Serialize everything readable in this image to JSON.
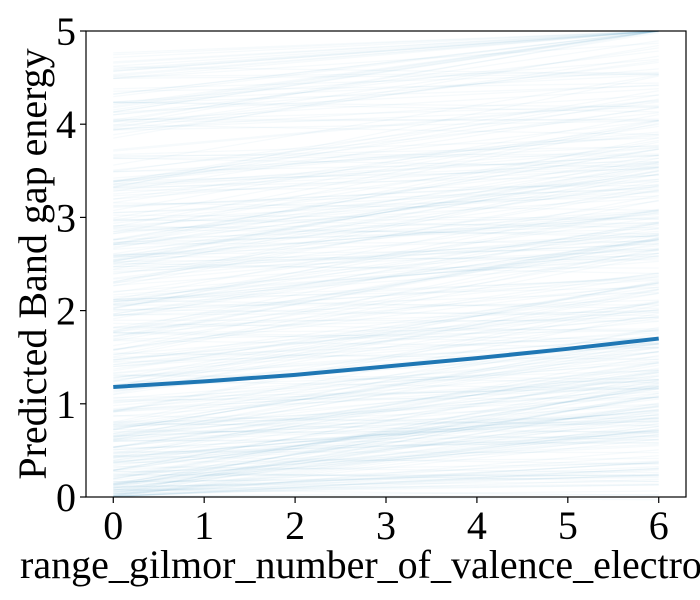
{
  "chart_data": {
    "type": "line",
    "title": "",
    "xlabel": "range_gilmor_number_of_valence_electron",
    "ylabel": "Predicted Band gap energy",
    "xlim": [
      -0.3,
      6.3
    ],
    "ylim": [
      0,
      5
    ],
    "xticks": [
      0,
      1,
      2,
      3,
      4,
      5,
      6
    ],
    "yticks": [
      0,
      1,
      2,
      3,
      4,
      5
    ],
    "xtick_labels": [
      "0",
      "1",
      "2",
      "3",
      "4",
      "5",
      "6"
    ],
    "ytick_labels": [
      "0",
      "1",
      "2",
      "3",
      "4",
      "5"
    ],
    "grid": false,
    "legend": "none",
    "ice_lines": {
      "description_color": "#1f77b4",
      "opacity": 0.04,
      "count": 400,
      "x_range": [
        0,
        6
      ],
      "intercept_range": [
        0.0,
        4.8
      ],
      "slope_range": [
        -0.02,
        0.2
      ]
    },
    "series": [
      {
        "x": [
          0,
          1,
          2,
          3,
          4,
          5,
          6
        ],
        "values": [
          1.18,
          1.24,
          1.31,
          1.4,
          1.49,
          1.59,
          1.7
        ]
      }
    ],
    "colors": {
      "mean_line": "#1f77b4",
      "ice": "#1f77b4",
      "axis": "#000000"
    }
  }
}
